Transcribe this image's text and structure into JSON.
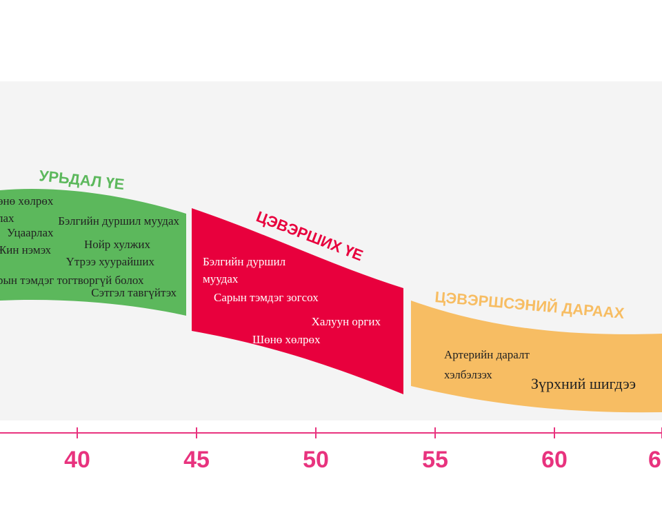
{
  "phases": [
    {
      "title": "УРЬДАЛ ҮЕ",
      "items": [
        "өнө хөлрөх",
        "лах",
        "Бэлгийн дуршил муудах",
        "Уцаарлах",
        "Нойр хулжих",
        "Жин нэмэх",
        "Үтрээ хуурайших",
        "рын тэмдэг тогтворгүй болох",
        "Сэтгэл тавгүйтэх"
      ]
    },
    {
      "title": "ЦЭВЭРШИХ ҮЕ",
      "items": [
        "Бэлгийн дуршил",
        "муудах",
        "Сарын тэмдэг зогсох",
        "Халуун оргих",
        "Шөнө хөлрөх"
      ]
    },
    {
      "title": "ЦЭВЭРШСЭНИЙ ДАРААХ",
      "items": [
        "Артерийн даралт",
        "хэлбэлзэх",
        "Зүрхний шигдээ"
      ]
    }
  ],
  "axis": {
    "labels": [
      "40",
      "45",
      "50",
      "55",
      "60",
      "6"
    ]
  }
}
